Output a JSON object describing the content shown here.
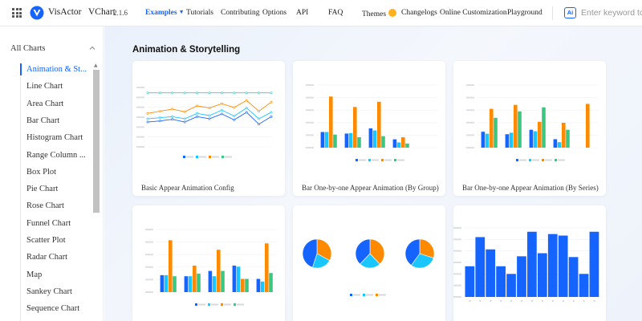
{
  "header": {
    "brand": "VisActor",
    "product": "VChart",
    "version": "2.1.6",
    "nav": [
      {
        "label": "Examples",
        "active": true
      },
      {
        "label": "Tutorials"
      },
      {
        "label": "Contributing"
      },
      {
        "label": "Options"
      },
      {
        "label": "API"
      },
      {
        "label": "FAQ"
      },
      {
        "label": "Themes"
      },
      {
        "label": "Changelogs"
      },
      {
        "label": "Online Customization"
      },
      {
        "label": "Playground"
      }
    ],
    "ai_badge": "Ai",
    "search_placeholder": "Enter keyword to"
  },
  "sidebar": {
    "title": "All Charts",
    "items": [
      {
        "label": "Animation & St...",
        "active": true
      },
      {
        "label": "Line Chart"
      },
      {
        "label": "Area Chart"
      },
      {
        "label": "Bar Chart"
      },
      {
        "label": "Histogram Chart"
      },
      {
        "label": "Range Column ..."
      },
      {
        "label": "Box Plot"
      },
      {
        "label": "Pie Chart"
      },
      {
        "label": "Rose Chart"
      },
      {
        "label": "Funnel Chart"
      },
      {
        "label": "Scatter Plot"
      },
      {
        "label": "Radar Chart"
      },
      {
        "label": "Map"
      },
      {
        "label": "Sankey Chart"
      },
      {
        "label": "Sequence Chart"
      }
    ]
  },
  "main": {
    "section_title": "Animation & Storytelling",
    "cards": [
      {
        "title": "Basic Appear Animation Config"
      },
      {
        "title": "Bar One-by-one Appear Animation (By Group)"
      },
      {
        "title": "Bar One-by-one Appear Animation (By Series)"
      },
      {
        "title": ""
      },
      {
        "title": ""
      },
      {
        "title": ""
      }
    ]
  },
  "colors": {
    "accent": "#1664ff",
    "series": [
      "#1664ff",
      "#1ac6ff",
      "#ff8a00",
      "#3cc780"
    ]
  },
  "icons": {
    "grid": "grid-icon",
    "logo": "visactor-logo-icon",
    "theme": "sun-icon",
    "collapse": "chevron-up-icon"
  },
  "chart_data": [
    {
      "type": "line",
      "series": [
        {
          "values": [
            100,
            100,
            100,
            100,
            100,
            100,
            100,
            100,
            100,
            100,
            100
          ]
        },
        {
          "values": [
            62,
            66,
            70,
            65,
            76,
            72,
            80,
            73,
            86,
            66,
            83
          ]
        },
        {
          "values": [
            52,
            54,
            56,
            52,
            62,
            58,
            68,
            57,
            72,
            52,
            64
          ]
        },
        {
          "values": [
            46,
            48,
            51,
            46,
            56,
            52,
            61,
            50,
            64,
            42,
            56
          ]
        }
      ]
    },
    {
      "type": "bar",
      "groups": 5,
      "series": [
        {
          "values": [
            30,
            27,
            37,
            16,
            0
          ]
        },
        {
          "values": [
            30,
            28,
            33,
            10,
            0
          ]
        },
        {
          "values": [
            98,
            78,
            88,
            20,
            0
          ]
        },
        {
          "values": [
            25,
            20,
            22,
            8,
            0
          ]
        }
      ]
    },
    {
      "type": "bar",
      "groups": 5,
      "series": [
        {
          "values": [
            32,
            27,
            36,
            17,
            0
          ]
        },
        {
          "values": [
            28,
            30,
            33,
            11,
            0
          ]
        },
        {
          "values": [
            78,
            86,
            52,
            50,
            88
          ]
        },
        {
          "values": [
            60,
            73,
            81,
            36,
            0
          ]
        }
      ]
    },
    {
      "type": "bar",
      "groups": 5,
      "series": [
        {
          "values": [
            32,
            30,
            40,
            50,
            25
          ]
        },
        {
          "values": [
            32,
            30,
            30,
            48,
            20
          ]
        },
        {
          "values": [
            98,
            50,
            80,
            25,
            92
          ]
        },
        {
          "values": [
            30,
            35,
            40,
            25,
            36
          ]
        }
      ]
    },
    {
      "type": "pie",
      "pies": [
        {
          "values": [
            33,
            22,
            45
          ]
        },
        {
          "values": [
            38,
            24,
            38
          ]
        },
        {
          "values": [
            30,
            30,
            40
          ]
        }
      ]
    },
    {
      "type": "bar",
      "values": [
        40,
        78,
        62,
        40,
        30,
        53,
        85,
        57,
        82,
        80,
        52,
        30,
        85
      ]
    }
  ]
}
